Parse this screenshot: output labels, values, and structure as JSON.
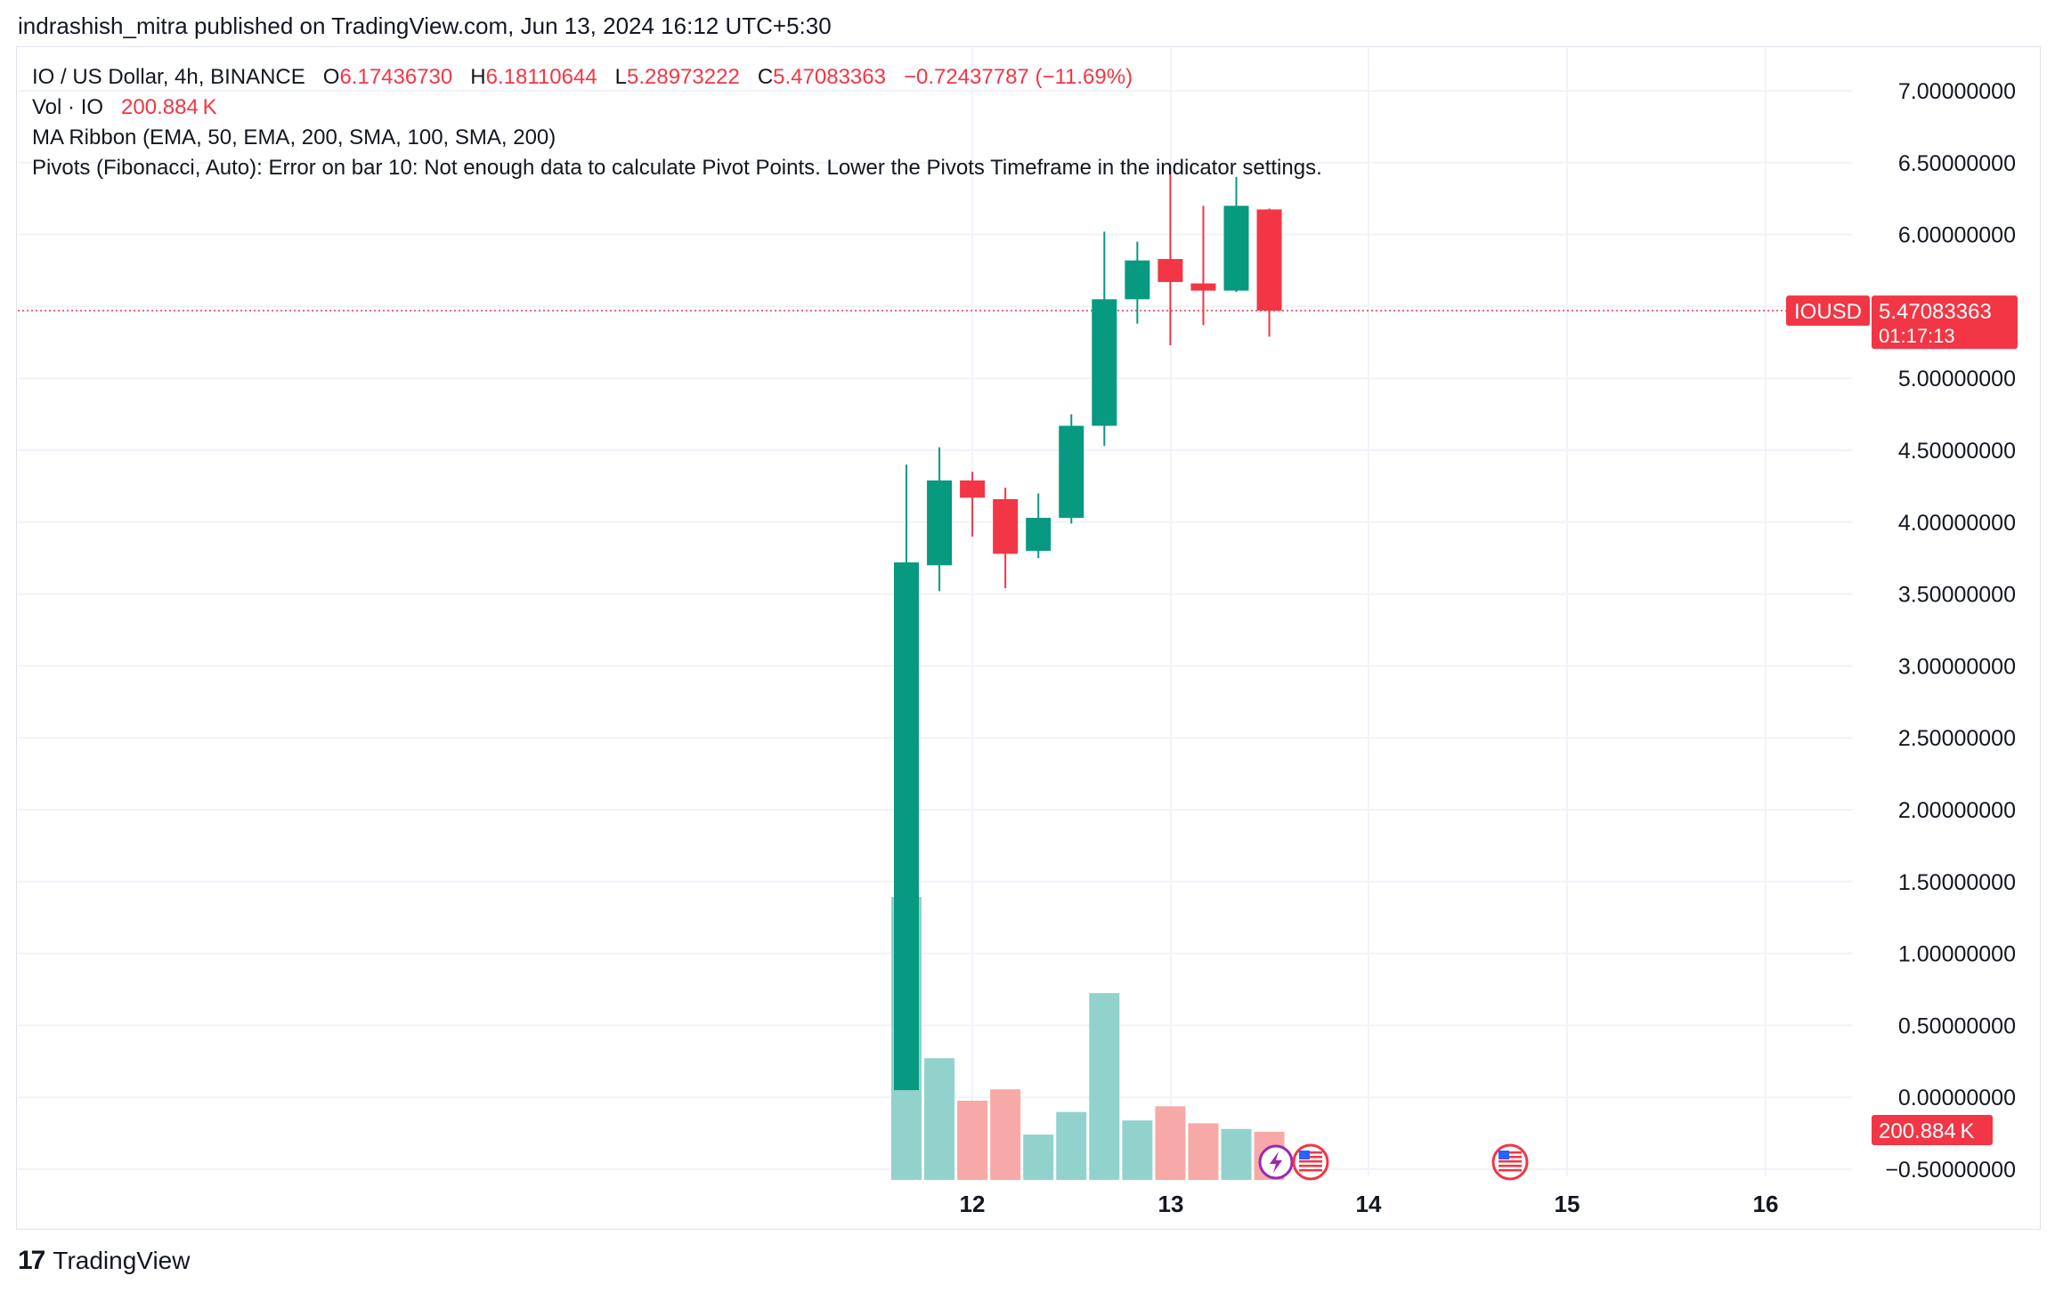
{
  "header": {
    "published": "indrashish_mitra published on TradingView.com, Jun 13, 2024 16:12 UTC+5:30"
  },
  "legend": {
    "symbol": "IO / US Dollar, 4h, BINANCE",
    "o_label": "O",
    "o_value": "6.17436730",
    "h_label": "H",
    "h_value": "6.18110644",
    "l_label": "L",
    "l_value": "5.28973222",
    "c_label": "C",
    "c_value": "5.47083363",
    "change": "−0.72437787 (−11.69%)",
    "vol_label": "Vol · IO",
    "vol_value": "200.884 K",
    "ma_ribbon": "MA Ribbon (EMA, 50, EMA, 200, SMA, 100, SMA, 200)",
    "pivots": "Pivots (Fibonacci, Auto): Error on bar 10: Not enough data to calculate Pivot Points. Lower the Pivots Timeframe in the indicator settings."
  },
  "price_tag": {
    "symbol": "IOUSD",
    "price": "5.47083363",
    "countdown": "01:17:13"
  },
  "volume_tag": "200.884 K",
  "footer": {
    "brand": "TradingView",
    "logo_mark": "17"
  },
  "colors": {
    "up": "#089981",
    "down": "#f23645",
    "vol_up": "#92d2cc",
    "vol_down": "#f7a9a7",
    "grid": "#f0f3fa",
    "price_line": "#f23645"
  },
  "chart_data": {
    "type": "candlestick",
    "x_tick_labels": [
      "12",
      "13",
      "14",
      "15",
      "16"
    ],
    "y_tick_labels": [
      "7.00000000",
      "6.50000000",
      "6.00000000",
      "5.50000000",
      "5.00000000",
      "4.50000000",
      "4.00000000",
      "3.50000000",
      "3.00000000",
      "2.50000000",
      "2.00000000",
      "1.50000000",
      "1.00000000",
      "0.50000000",
      "0.00000000",
      "−0.50000000"
    ],
    "ylim": [
      -0.5,
      7.0
    ],
    "last_price": 5.47083363,
    "candles": [
      {
        "o": 0.05,
        "h": 4.4,
        "l": 0.05,
        "c": 3.72
      },
      {
        "o": 3.7,
        "h": 4.52,
        "l": 3.52,
        "c": 4.29
      },
      {
        "o": 4.29,
        "h": 4.35,
        "l": 3.9,
        "c": 4.17
      },
      {
        "o": 4.16,
        "h": 4.24,
        "l": 3.54,
        "c": 3.78
      },
      {
        "o": 3.8,
        "h": 4.2,
        "l": 3.75,
        "c": 4.03
      },
      {
        "o": 4.03,
        "h": 4.75,
        "l": 3.99,
        "c": 4.67
      },
      {
        "o": 4.67,
        "h": 6.02,
        "l": 4.53,
        "c": 5.55
      },
      {
        "o": 5.55,
        "h": 5.95,
        "l": 5.38,
        "c": 5.82
      },
      {
        "o": 5.83,
        "h": 6.48,
        "l": 5.23,
        "c": 5.67
      },
      {
        "o": 5.66,
        "h": 6.2,
        "l": 5.37,
        "c": 5.61
      },
      {
        "o": 5.61,
        "h": 6.4,
        "l": 5.6,
        "c": 6.2
      },
      {
        "o": 6.1743673,
        "h": 6.18110644,
        "l": 5.28973222,
        "c": 5.47083363
      }
    ],
    "volume_direction": [
      "up",
      "up",
      "down",
      "down",
      "up",
      "up",
      "up",
      "up",
      "down",
      "down",
      "up",
      "down"
    ],
    "volume_relative": [
      1.0,
      0.43,
      0.28,
      0.32,
      0.16,
      0.24,
      0.66,
      0.21,
      0.26,
      0.2,
      0.18,
      0.17
    ],
    "events": [
      "lightning-event",
      "us-flag-event",
      "us-flag-event"
    ]
  }
}
